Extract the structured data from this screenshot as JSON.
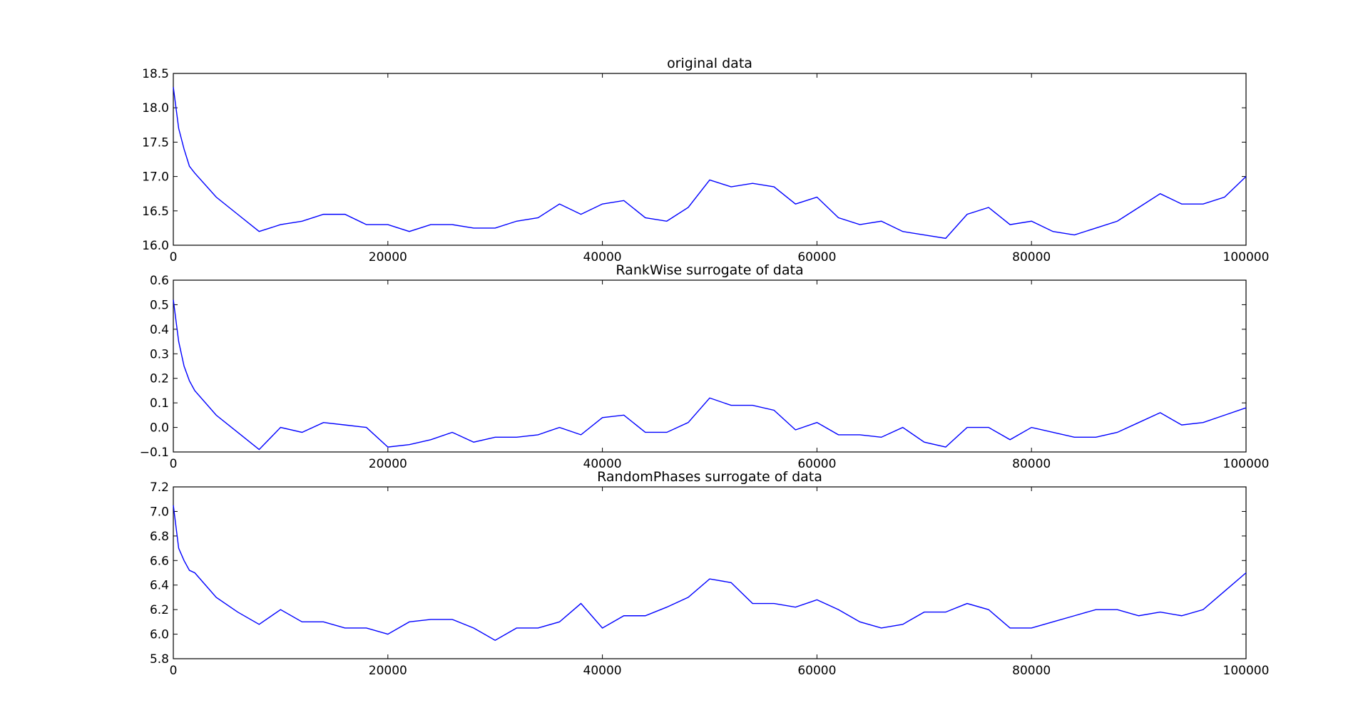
{
  "chart_data": [
    {
      "type": "line",
      "title": "original data",
      "color": "#0000ff",
      "x": [
        0,
        500,
        1000,
        1500,
        2000,
        4000,
        6000,
        8000,
        10000,
        12000,
        14000,
        16000,
        18000,
        20000,
        22000,
        24000,
        26000,
        28000,
        30000,
        32000,
        34000,
        36000,
        38000,
        40000,
        42000,
        44000,
        46000,
        48000,
        50000,
        52000,
        54000,
        56000,
        58000,
        60000,
        62000,
        64000,
        66000,
        68000,
        70000,
        72000,
        74000,
        76000,
        78000,
        80000,
        82000,
        84000,
        86000,
        88000,
        90000,
        92000,
        94000,
        96000,
        98000,
        100000
      ],
      "values": [
        18.3,
        17.7,
        17.4,
        17.15,
        17.05,
        16.7,
        16.45,
        16.2,
        16.3,
        16.35,
        16.45,
        16.45,
        16.3,
        16.3,
        16.2,
        16.3,
        16.3,
        16.25,
        16.25,
        16.35,
        16.4,
        16.6,
        16.45,
        16.6,
        16.65,
        16.4,
        16.35,
        16.55,
        16.95,
        16.85,
        16.9,
        16.85,
        16.6,
        16.7,
        16.4,
        16.3,
        16.35,
        16.2,
        16.15,
        16.1,
        16.45,
        16.55,
        16.3,
        16.35,
        16.2,
        16.15,
        16.25,
        16.35,
        16.55,
        16.75,
        16.6,
        16.6,
        16.7,
        17.0
      ],
      "xlim": [
        0,
        100000
      ],
      "xticks": [
        0,
        20000,
        40000,
        60000,
        80000,
        100000
      ],
      "ylim": [
        16.0,
        18.5
      ],
      "yticks": [
        {
          "value": 16.0,
          "label": "16.0"
        },
        16.5,
        {
          "value": 17.0,
          "label": "17.0"
        },
        17.5,
        {
          "value": 18.0,
          "label": "18.0"
        },
        18.5
      ]
    },
    {
      "type": "line",
      "title": "RankWise surrogate of data",
      "color": "#0000ff",
      "x": [
        0,
        500,
        1000,
        1500,
        2000,
        4000,
        6000,
        8000,
        10000,
        12000,
        14000,
        16000,
        18000,
        20000,
        22000,
        24000,
        26000,
        28000,
        30000,
        32000,
        34000,
        36000,
        38000,
        40000,
        42000,
        44000,
        46000,
        48000,
        50000,
        52000,
        54000,
        56000,
        58000,
        60000,
        62000,
        64000,
        66000,
        68000,
        70000,
        72000,
        74000,
        76000,
        78000,
        80000,
        82000,
        84000,
        86000,
        88000,
        90000,
        92000,
        94000,
        96000,
        98000,
        100000
      ],
      "values": [
        0.52,
        0.35,
        0.25,
        0.19,
        0.15,
        0.05,
        -0.02,
        -0.09,
        0.0,
        -0.02,
        0.02,
        0.01,
        0.0,
        -0.08,
        -0.07,
        -0.05,
        -0.02,
        -0.06,
        -0.04,
        -0.04,
        -0.03,
        0.0,
        -0.03,
        0.04,
        0.05,
        -0.02,
        -0.02,
        0.02,
        0.12,
        0.09,
        0.09,
        0.07,
        -0.01,
        0.02,
        -0.03,
        -0.03,
        -0.04,
        0.0,
        -0.06,
        -0.08,
        0.0,
        0.0,
        -0.05,
        0.0,
        -0.02,
        -0.04,
        -0.04,
        -0.02,
        0.02,
        0.06,
        0.01,
        0.02,
        0.05,
        0.08
      ],
      "xlim": [
        0,
        100000
      ],
      "xticks": [
        0,
        20000,
        40000,
        60000,
        80000,
        100000
      ],
      "ylim": [
        -0.1,
        0.6
      ],
      "yticks": [
        {
          "value": -0.1,
          "label": "−0.1"
        },
        {
          "value": 0.0,
          "label": "0.0"
        },
        0.1,
        0.2,
        0.3,
        0.4,
        0.5,
        0.6
      ]
    },
    {
      "type": "line",
      "title": "RandomPhases surrogate of data",
      "color": "#0000ff",
      "x": [
        0,
        500,
        1000,
        1500,
        2000,
        4000,
        6000,
        8000,
        10000,
        12000,
        14000,
        16000,
        18000,
        20000,
        22000,
        24000,
        26000,
        28000,
        30000,
        32000,
        34000,
        36000,
        38000,
        40000,
        42000,
        44000,
        46000,
        48000,
        50000,
        52000,
        54000,
        56000,
        58000,
        60000,
        62000,
        64000,
        66000,
        68000,
        70000,
        72000,
        74000,
        76000,
        78000,
        80000,
        82000,
        84000,
        86000,
        88000,
        90000,
        92000,
        94000,
        96000,
        98000,
        100000
      ],
      "values": [
        7.05,
        6.7,
        6.6,
        6.52,
        6.5,
        6.3,
        6.18,
        6.08,
        6.2,
        6.1,
        6.1,
        6.05,
        6.05,
        6.0,
        6.1,
        6.12,
        6.12,
        6.05,
        5.95,
        6.05,
        6.05,
        6.1,
        6.25,
        6.05,
        6.15,
        6.15,
        6.22,
        6.3,
        6.45,
        6.42,
        6.25,
        6.25,
        6.22,
        6.28,
        6.2,
        6.1,
        6.05,
        6.08,
        6.18,
        6.18,
        6.25,
        6.2,
        6.05,
        6.05,
        6.1,
        6.15,
        6.2,
        6.2,
        6.15,
        6.18,
        6.15,
        6.2,
        6.35,
        6.5
      ],
      "xlim": [
        0,
        100000
      ],
      "xticks": [
        0,
        20000,
        40000,
        60000,
        80000,
        100000
      ],
      "ylim": [
        5.8,
        7.2
      ],
      "yticks": [
        5.8,
        {
          "value": 6.0,
          "label": "6.0"
        },
        6.2,
        6.4,
        6.6,
        6.8,
        {
          "value": 7.0,
          "label": "7.0"
        },
        7.2
      ]
    }
  ]
}
